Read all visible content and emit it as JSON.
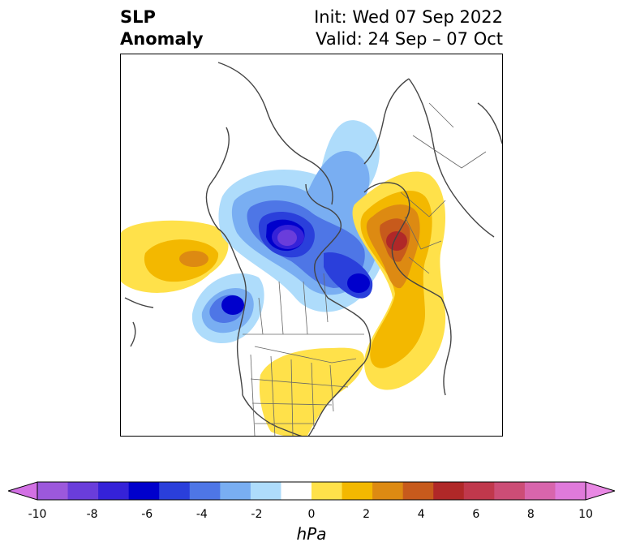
{
  "header": {
    "variable": "SLP",
    "variable_sub": "Anomaly",
    "init": "Init: Wed 07 Sep 2022",
    "valid": "Valid: 24 Sep – 07 Oct"
  },
  "colorbar": {
    "units": "hPa",
    "ticks": [
      "-10",
      "-8",
      "-6",
      "-4",
      "-2",
      "0",
      "2",
      "4",
      "6",
      "8",
      "10"
    ],
    "colors": [
      "#d270e4",
      "#9c58dc",
      "#6a3ddb",
      "#3522d8",
      "#0000cc",
      "#2a3fdb",
      "#4e76e6",
      "#79aef2",
      "#aedcfb",
      "#ffffff",
      "#ffe14a",
      "#f3b800",
      "#dd8a12",
      "#c75a1c",
      "#b02828",
      "#c0384c",
      "#cc4d76",
      "#d865ac",
      "#e07adb",
      "#e988e4"
    ],
    "extend": "both"
  },
  "map": {
    "projection": "polar stereographic",
    "region": "North America / North Pacific / Arctic / North Atlantic",
    "features": [
      "coastlines",
      "country borders",
      "US state borders",
      "Canadian province borders"
    ]
  }
}
